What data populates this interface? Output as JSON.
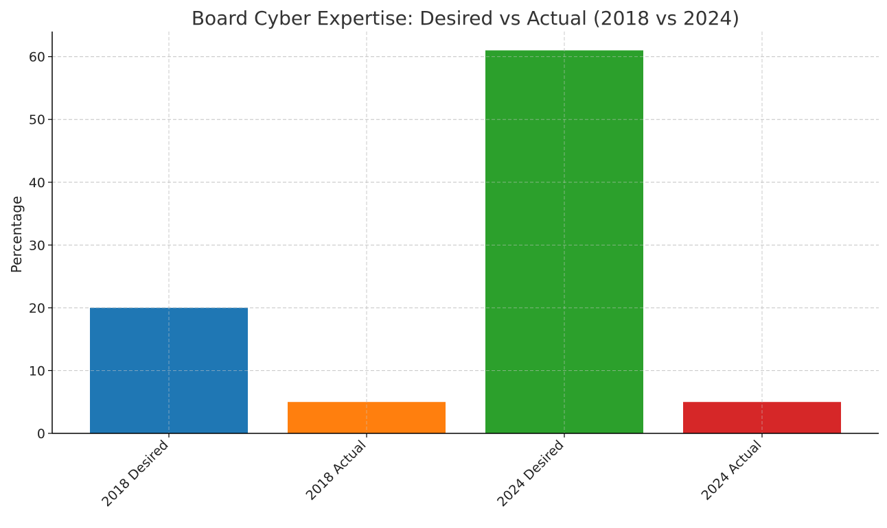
{
  "chart_data": {
    "type": "bar",
    "title": "Board Cyber Expertise: Desired vs Actual (2018 vs 2024)",
    "xlabel": "",
    "ylabel": "Percentage",
    "categories": [
      "2018 Desired",
      "2018 Actual",
      "2024 Desired",
      "2024 Actual"
    ],
    "values": [
      20,
      5,
      61,
      5
    ],
    "colors": [
      "#1f77b4",
      "#ff7f0e",
      "#2ca02c",
      "#d62728"
    ],
    "ylim": [
      0,
      64
    ],
    "yticks": [
      0,
      10,
      20,
      30,
      40,
      50,
      60
    ],
    "grid": true
  }
}
